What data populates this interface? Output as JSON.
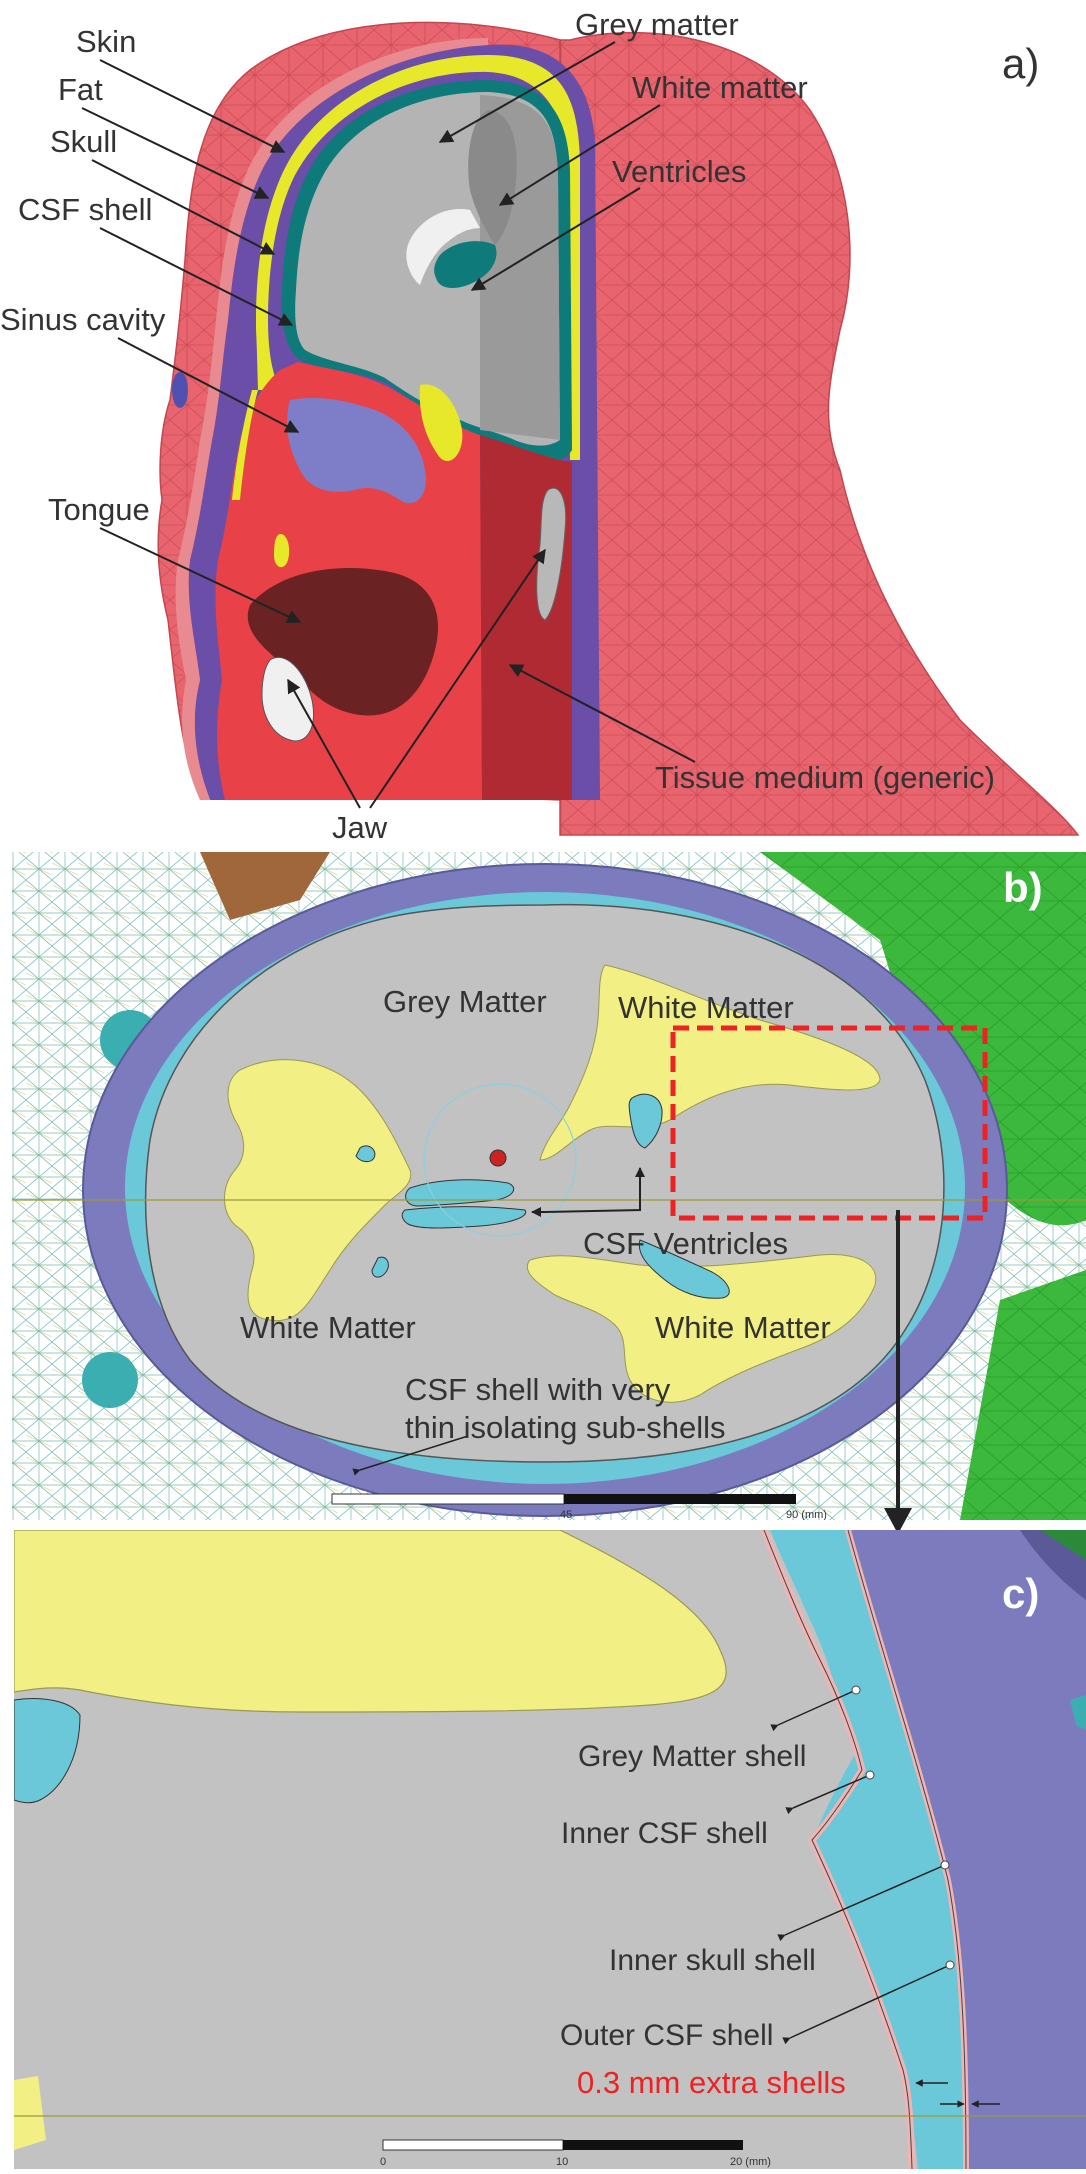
{
  "panel_a": {
    "letter": "a)",
    "labels": {
      "skin": "Skin",
      "fat": "Fat",
      "skull": "Skull",
      "csf_shell": "CSF shell",
      "sinus_cavity": "Sinus cavity",
      "tongue": "Tongue",
      "grey_matter": "Grey matter",
      "white_matter": "White matter",
      "ventricles": "Ventricles",
      "tissue_medium": "Tissue medium (generic)",
      "jaw": "Jaw"
    }
  },
  "panel_b": {
    "letter": "b)",
    "labels": {
      "grey_matter": "Grey Matter",
      "white_matter_1": "White Matter",
      "white_matter_2": "White Matter",
      "white_matter_3": "White Matter",
      "csf_ventricles": "CSF Ventricles",
      "csf_shell_line1": "CSF shell with very",
      "csf_shell_line2": "thin isolating sub-shells"
    },
    "scale_bar": {
      "tick_mid": "45",
      "tick_end": "90 (mm)"
    }
  },
  "panel_c": {
    "letter": "c)",
    "labels": {
      "grey_matter_shell": "Grey Matter shell",
      "inner_csf_shell": "Inner CSF shell",
      "inner_skull_shell": "Inner skull shell",
      "outer_csf_shell": "Outer CSF shell",
      "extra_shells": "0.3 mm extra shells"
    },
    "scale_bar": {
      "tick_start": "0",
      "tick_mid": "10",
      "tick_end": "20 (mm)"
    }
  },
  "colors": {
    "skin": "#e8646e",
    "fat": "#6a4ea8",
    "skull": "#e8e82a",
    "csf": "#0e7a7a",
    "grey_matter": "#b4b4b4",
    "white_matter_a": "#f0f0f0",
    "tissue": "#e84248",
    "tongue": "#6a2222",
    "sinus": "#7e7ec8",
    "b_skull": "#7b7bbd",
    "b_csf": "#6ac8d8",
    "b_white": "#f2ef84",
    "b_grey": "#c2c2c2",
    "highlight": "#ee2222"
  }
}
